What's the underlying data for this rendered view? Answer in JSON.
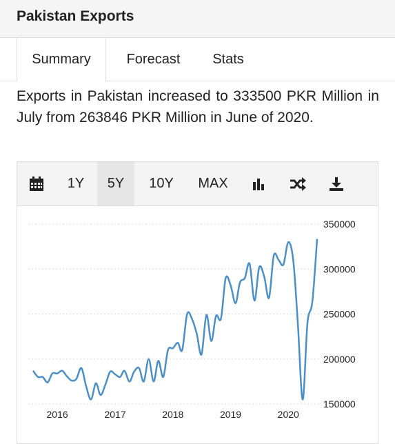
{
  "header": {
    "title": "Pakistan Exports"
  },
  "tabs": [
    {
      "label": "Summary",
      "active": true
    },
    {
      "label": "Forecast"
    },
    {
      "label": "Stats"
    }
  ],
  "summary": {
    "text": "Exports in Pakistan increased to 333500 PKR Million in July from 263846 PKR Million in June of 2020."
  },
  "toolbar": {
    "calendar_icon": "calendar-icon",
    "ranges": [
      "1Y",
      "5Y",
      "10Y",
      "MAX"
    ],
    "active_range": "5Y",
    "bar_icon": "bar-chart-icon",
    "shuffle_icon": "shuffle-icon",
    "download_icon": "download-icon"
  },
  "colors": {
    "line": "#4a8fc7",
    "grid": "#d9d9d9",
    "active_tab_bg": "#e6e6e6"
  },
  "chart_data": {
    "type": "line",
    "title": "",
    "xlabel": "",
    "ylabel": "",
    "ylim": [
      150000,
      350000
    ],
    "y_ticks": [
      "350000",
      "300000",
      "250000",
      "200000",
      "150000"
    ],
    "x_ticks": [
      "2016",
      "2017",
      "2018",
      "2019",
      "2020"
    ],
    "grid": "horizontal dotted",
    "series": [
      {
        "x": [
          "2015-08",
          "2015-09",
          "2015-10",
          "2015-11",
          "2015-12",
          "2016-01",
          "2016-02",
          "2016-03",
          "2016-04",
          "2016-05",
          "2016-06",
          "2016-07",
          "2016-08",
          "2016-09",
          "2016-10",
          "2016-11",
          "2016-12",
          "2017-01",
          "2017-02",
          "2017-03",
          "2017-04",
          "2017-05",
          "2017-06",
          "2017-07",
          "2017-08",
          "2017-09",
          "2017-10",
          "2017-11",
          "2017-12",
          "2018-01",
          "2018-02",
          "2018-03",
          "2018-04",
          "2018-05",
          "2018-06",
          "2018-07",
          "2018-08",
          "2018-09",
          "2018-10",
          "2018-11",
          "2018-12",
          "2019-01",
          "2019-02",
          "2019-03",
          "2019-04",
          "2019-05",
          "2019-06",
          "2019-07",
          "2019-08",
          "2019-09",
          "2019-10",
          "2019-11",
          "2019-12",
          "2020-01",
          "2020-02",
          "2020-03",
          "2020-04",
          "2020-05",
          "2020-06",
          "2020-07"
        ],
        "values": [
          187000,
          180000,
          180000,
          174000,
          184000,
          184000,
          187000,
          181000,
          176000,
          178000,
          190000,
          170000,
          155000,
          173000,
          160000,
          172000,
          186000,
          183000,
          180000,
          187000,
          175000,
          186000,
          190000,
          175000,
          200000,
          175000,
          198000,
          180000,
          210000,
          212000,
          218000,
          210000,
          250000,
          245000,
          228000,
          205000,
          249000,
          220000,
          248000,
          245000,
          290000,
          282000,
          262000,
          285000,
          290000,
          306000,
          265000,
          302000,
          292000,
          268000,
          315000,
          310000,
          305000,
          330000,
          310000,
          240000,
          155000,
          240000,
          263846,
          333500
        ]
      }
    ]
  }
}
